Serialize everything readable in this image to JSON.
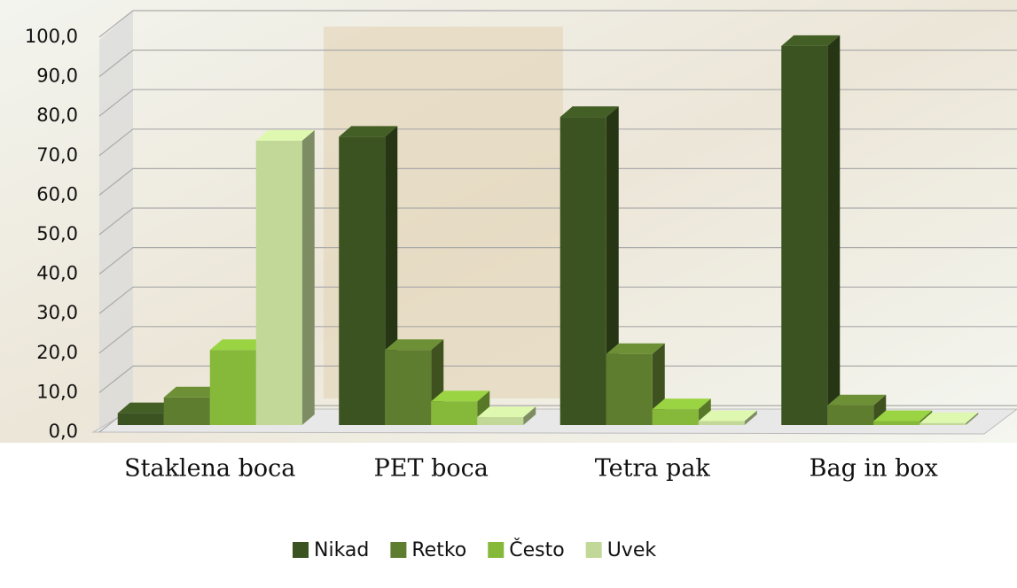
{
  "chart_data": {
    "type": "bar3d",
    "categories": [
      "Staklena boca",
      "PET boca",
      "Tetra pak",
      "Bag in box"
    ],
    "series": [
      {
        "name": "Nikad",
        "color": "#3b5320",
        "values": [
          3,
          73,
          78,
          96
        ]
      },
      {
        "name": "Retko",
        "color": "#5f7d2f",
        "values": [
          7,
          19,
          18,
          5
        ]
      },
      {
        "name": "Često",
        "color": "#86b83a",
        "values": [
          19,
          6,
          4,
          1
        ]
      },
      {
        "name": "Uvek",
        "color": "#c2d898",
        "values": [
          72,
          2,
          1,
          0.5
        ]
      }
    ],
    "ylim": [
      0,
      100
    ],
    "yticks": [
      {
        "value": 0,
        "label": "0,0"
      },
      {
        "value": 10,
        "label": "10,0"
      },
      {
        "value": 20,
        "label": "20,0"
      },
      {
        "value": 30,
        "label": "30,0"
      },
      {
        "value": 40,
        "label": "40,0"
      },
      {
        "value": 50,
        "label": "50,0"
      },
      {
        "value": 60,
        "label": "60,0"
      },
      {
        "value": 70,
        "label": "70,0"
      },
      {
        "value": 80,
        "label": "80,0"
      },
      {
        "value": 90,
        "label": "90,0"
      },
      {
        "value": 100,
        "label": "100,0"
      }
    ],
    "grid": true,
    "legend": "bottom"
  }
}
